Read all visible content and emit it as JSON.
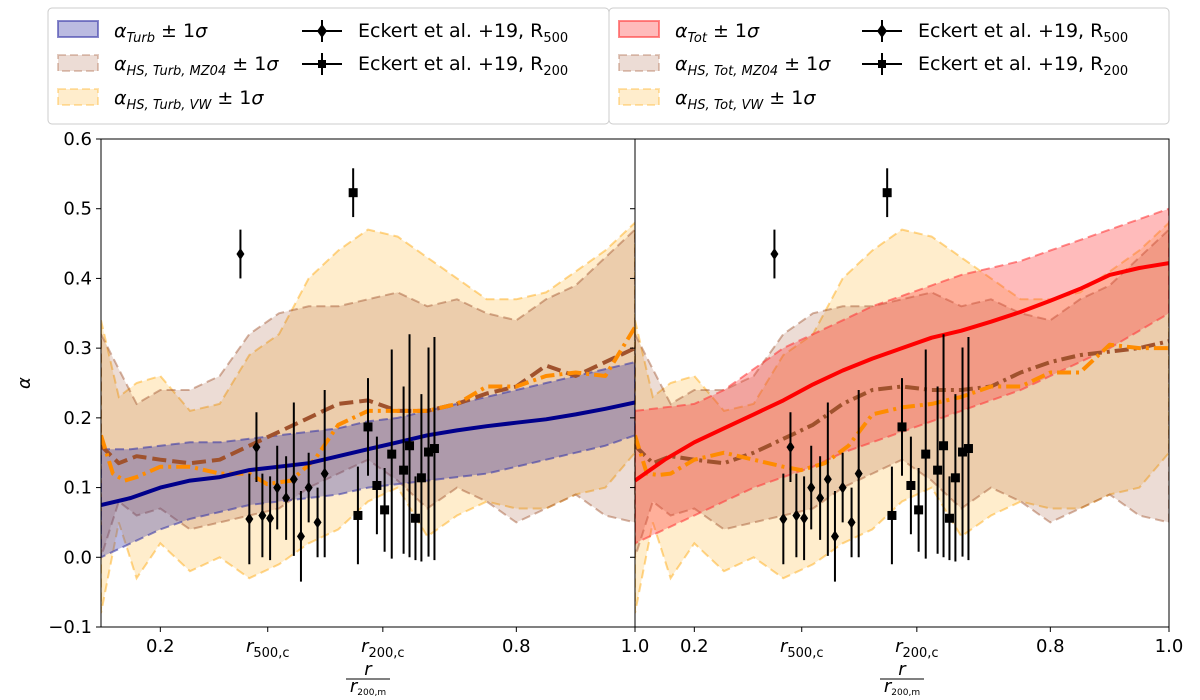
{
  "chart_data": [
    {
      "type": "line",
      "panel": "left",
      "ylabel": "α",
      "xlabel_num": "r",
      "xlabel_den": "r200,m",
      "xlim": [
        0.1,
        1.0
      ],
      "ylim": [
        -0.1,
        0.6
      ],
      "yticks": [
        -0.1,
        0.0,
        0.1,
        0.2,
        0.3,
        0.4,
        0.5,
        0.6
      ],
      "ytick_labels": [
        "−0.1",
        "0.0",
        "0.1",
        "0.2",
        "0.3",
        "0.4",
        "0.5",
        "0.6"
      ],
      "xticks": [
        0.2,
        0.381,
        0.575,
        0.8,
        1.0
      ],
      "xtick_labels": [
        "0.2",
        "r500,c",
        "r200,c",
        "0.8",
        "1.0"
      ],
      "legend": {
        "entries": [
          {
            "label": "αTurb ± 1σ",
            "kind": "band",
            "color": "#3b3ba8"
          },
          {
            "label": "αHS,Turb,MZ04 ± 1σ",
            "kind": "band",
            "color": "#a0522d"
          },
          {
            "label": "αHS,Turb,VW ± 1σ",
            "kind": "band",
            "color": "#ffa500"
          },
          {
            "label": "Eckert et al. +19, R500",
            "kind": "diamond",
            "color": "#000000"
          },
          {
            "label": "Eckert et al. +19, R200",
            "kind": "square",
            "color": "#000000"
          }
        ]
      },
      "series": [
        {
          "name": "αHS,Turb,VW band",
          "kind": "band",
          "color": "#ffa500",
          "opacity": 0.2,
          "x": [
            0.1,
            0.13,
            0.16,
            0.2,
            0.25,
            0.3,
            0.35,
            0.4,
            0.45,
            0.5,
            0.55,
            0.6,
            0.65,
            0.7,
            0.75,
            0.8,
            0.85,
            0.9,
            0.95,
            1.0
          ],
          "lower": [
            -0.08,
            0.05,
            -0.03,
            0.02,
            -0.02,
            0.0,
            -0.03,
            -0.01,
            0.02,
            0.04,
            0.08,
            0.1,
            0.03,
            0.06,
            0.08,
            0.07,
            0.07,
            0.09,
            0.1,
            0.15
          ],
          "upper": [
            0.34,
            0.23,
            0.25,
            0.26,
            0.21,
            0.22,
            0.29,
            0.32,
            0.4,
            0.44,
            0.47,
            0.46,
            0.43,
            0.4,
            0.37,
            0.37,
            0.38,
            0.41,
            0.44,
            0.48
          ]
        },
        {
          "name": "αHS,Turb,MZ04 band",
          "kind": "band",
          "color": "#a0522d",
          "opacity": 0.2,
          "x": [
            0.1,
            0.13,
            0.16,
            0.2,
            0.25,
            0.3,
            0.35,
            0.4,
            0.45,
            0.5,
            0.55,
            0.6,
            0.65,
            0.7,
            0.75,
            0.8,
            0.85,
            0.9,
            0.95,
            1.0
          ],
          "lower": [
            0.0,
            0.08,
            0.06,
            0.07,
            0.04,
            0.05,
            0.06,
            0.07,
            0.1,
            0.12,
            0.14,
            0.11,
            0.07,
            0.1,
            0.08,
            0.05,
            0.07,
            0.09,
            0.06,
            0.05
          ],
          "upper": [
            0.32,
            0.27,
            0.22,
            0.24,
            0.24,
            0.26,
            0.32,
            0.35,
            0.36,
            0.36,
            0.37,
            0.38,
            0.36,
            0.37,
            0.35,
            0.34,
            0.37,
            0.39,
            0.43,
            0.47
          ]
        },
        {
          "name": "αTurb band",
          "kind": "band",
          "color": "#3b3ba8",
          "opacity": 0.35,
          "x": [
            0.1,
            0.15,
            0.2,
            0.25,
            0.3,
            0.35,
            0.4,
            0.45,
            0.5,
            0.55,
            0.6,
            0.65,
            0.7,
            0.75,
            0.8,
            0.85,
            0.9,
            0.95,
            1.0
          ],
          "lower": [
            0.0,
            0.02,
            0.04,
            0.055,
            0.065,
            0.075,
            0.08,
            0.085,
            0.09,
            0.1,
            0.105,
            0.11,
            0.115,
            0.12,
            0.13,
            0.14,
            0.15,
            0.16,
            0.175
          ],
          "upper": [
            0.155,
            0.155,
            0.16,
            0.165,
            0.165,
            0.17,
            0.175,
            0.18,
            0.185,
            0.195,
            0.2,
            0.21,
            0.22,
            0.23,
            0.24,
            0.25,
            0.26,
            0.27,
            0.28
          ]
        },
        {
          "name": "αHS,Turb,MZ04",
          "kind": "line",
          "dash": "dashed",
          "color": "#a0522d",
          "x": [
            0.1,
            0.13,
            0.16,
            0.2,
            0.25,
            0.3,
            0.35,
            0.4,
            0.45,
            0.5,
            0.55,
            0.6,
            0.65,
            0.7,
            0.75,
            0.8,
            0.85,
            0.9,
            0.95,
            1.0
          ],
          "y": [
            0.16,
            0.135,
            0.145,
            0.14,
            0.135,
            0.14,
            0.16,
            0.18,
            0.2,
            0.22,
            0.225,
            0.21,
            0.21,
            0.22,
            0.235,
            0.245,
            0.275,
            0.26,
            0.28,
            0.3
          ]
        },
        {
          "name": "αHS,Turb,VW",
          "kind": "line",
          "dash": "dashdot",
          "color": "#ff8c00",
          "x": [
            0.1,
            0.12,
            0.14,
            0.16,
            0.2,
            0.25,
            0.3,
            0.35,
            0.38,
            0.42,
            0.46,
            0.5,
            0.55,
            0.6,
            0.65,
            0.7,
            0.75,
            0.8,
            0.85,
            0.9,
            0.95,
            1.0
          ],
          "y": [
            0.175,
            0.12,
            0.11,
            0.115,
            0.13,
            0.13,
            0.12,
            0.12,
            0.105,
            0.11,
            0.14,
            0.19,
            0.21,
            0.21,
            0.21,
            0.22,
            0.245,
            0.245,
            0.26,
            0.265,
            0.26,
            0.33
          ]
        },
        {
          "name": "αTurb",
          "kind": "line",
          "dash": "solid",
          "color": "#00008b",
          "x": [
            0.1,
            0.15,
            0.2,
            0.25,
            0.3,
            0.35,
            0.4,
            0.45,
            0.5,
            0.55,
            0.6,
            0.65,
            0.7,
            0.75,
            0.8,
            0.85,
            0.9,
            0.95,
            1.0
          ],
          "y": [
            0.075,
            0.085,
            0.1,
            0.11,
            0.115,
            0.125,
            0.13,
            0.135,
            0.145,
            0.155,
            0.165,
            0.175,
            0.182,
            0.188,
            0.193,
            0.198,
            0.205,
            0.213,
            0.222
          ]
        },
        {
          "name": "Eckert et al. +19, R500",
          "kind": "errorbar",
          "marker": "diamond",
          "color": "#000000",
          "x": [
            0.335,
            0.35,
            0.362,
            0.372,
            0.385,
            0.397,
            0.412,
            0.425,
            0.437,
            0.45,
            0.465,
            0.477
          ],
          "y": [
            0.435,
            0.055,
            0.158,
            0.06,
            0.056,
            0.1,
            0.085,
            0.112,
            0.03,
            0.1,
            0.05,
            0.12
          ],
          "err": [
            0.035,
            0.065,
            0.05,
            0.06,
            0.06,
            0.06,
            0.06,
            0.11,
            0.065,
            0.05,
            0.05,
            0.12
          ]
        },
        {
          "name": "Eckert et al. +19, R200",
          "kind": "errorbar",
          "marker": "square",
          "color": "#000000",
          "x": [
            0.525,
            0.533,
            0.55,
            0.565,
            0.578,
            0.59,
            0.61,
            0.62,
            0.63,
            0.64,
            0.652,
            0.662
          ],
          "y": [
            0.523,
            0.06,
            0.187,
            0.103,
            0.068,
            0.148,
            0.125,
            0.16,
            0.056,
            0.114,
            0.151,
            0.156
          ],
          "err": [
            0.035,
            0.07,
            0.07,
            0.07,
            0.06,
            0.15,
            0.12,
            0.16,
            0.06,
            0.12,
            0.15,
            0.16
          ]
        }
      ]
    },
    {
      "type": "line",
      "panel": "right",
      "xlabel_num": "r",
      "xlabel_den": "r200,m",
      "xlim": [
        0.1,
        1.0
      ],
      "ylim": [
        -0.1,
        0.6
      ],
      "xticks": [
        0.2,
        0.381,
        0.575,
        0.8,
        1.0
      ],
      "xtick_labels": [
        "0.2",
        "r500,c",
        "r200,c",
        "0.8",
        "1.0"
      ],
      "legend": {
        "entries": [
          {
            "label": "αTot ± 1σ",
            "kind": "band",
            "color": "#ff3c3c"
          },
          {
            "label": "αHS,Tot,MZ04 ± 1σ",
            "kind": "band",
            "color": "#a0522d"
          },
          {
            "label": "αHS,Tot,VW ± 1σ",
            "kind": "band",
            "color": "#ffa500"
          },
          {
            "label": "Eckert et al. +19, R500",
            "kind": "diamond",
            "color": "#000000"
          },
          {
            "label": "Eckert et al. +19, R200",
            "kind": "square",
            "color": "#000000"
          }
        ]
      },
      "series": [
        {
          "name": "αHS,Tot,VW band",
          "kind": "band",
          "color": "#ffa500",
          "opacity": 0.2,
          "x": [
            0.1,
            0.13,
            0.16,
            0.2,
            0.25,
            0.3,
            0.35,
            0.4,
            0.45,
            0.5,
            0.55,
            0.6,
            0.65,
            0.7,
            0.75,
            0.8,
            0.85,
            0.9,
            0.95,
            1.0
          ],
          "lower": [
            -0.08,
            0.05,
            -0.03,
            0.02,
            -0.02,
            0.0,
            -0.03,
            -0.01,
            0.02,
            0.04,
            0.08,
            0.1,
            0.03,
            0.06,
            0.08,
            0.07,
            0.07,
            0.09,
            0.1,
            0.15
          ],
          "upper": [
            0.34,
            0.23,
            0.25,
            0.26,
            0.21,
            0.22,
            0.29,
            0.32,
            0.4,
            0.44,
            0.47,
            0.46,
            0.43,
            0.4,
            0.37,
            0.37,
            0.38,
            0.41,
            0.44,
            0.48
          ]
        },
        {
          "name": "αHS,Tot,MZ04 band",
          "kind": "band",
          "color": "#a0522d",
          "opacity": 0.2,
          "x": [
            0.1,
            0.13,
            0.16,
            0.2,
            0.25,
            0.3,
            0.35,
            0.4,
            0.45,
            0.5,
            0.55,
            0.6,
            0.65,
            0.7,
            0.75,
            0.8,
            0.85,
            0.9,
            0.95,
            1.0
          ],
          "lower": [
            0.0,
            0.08,
            0.06,
            0.07,
            0.04,
            0.05,
            0.06,
            0.07,
            0.1,
            0.12,
            0.14,
            0.11,
            0.07,
            0.1,
            0.08,
            0.05,
            0.07,
            0.09,
            0.06,
            0.05
          ],
          "upper": [
            0.32,
            0.27,
            0.22,
            0.24,
            0.24,
            0.26,
            0.32,
            0.35,
            0.36,
            0.36,
            0.37,
            0.38,
            0.36,
            0.37,
            0.35,
            0.34,
            0.37,
            0.39,
            0.43,
            0.47
          ]
        },
        {
          "name": "αTot band",
          "kind": "band",
          "color": "#ff3c3c",
          "opacity": 0.35,
          "x": [
            0.1,
            0.15,
            0.2,
            0.25,
            0.3,
            0.35,
            0.4,
            0.45,
            0.5,
            0.55,
            0.6,
            0.65,
            0.7,
            0.75,
            0.8,
            0.85,
            0.9,
            0.95,
            1.0
          ],
          "lower": [
            0.02,
            0.04,
            0.06,
            0.08,
            0.1,
            0.115,
            0.13,
            0.15,
            0.165,
            0.18,
            0.195,
            0.21,
            0.225,
            0.24,
            0.26,
            0.28,
            0.3,
            0.325,
            0.35
          ],
          "upper": [
            0.21,
            0.215,
            0.22,
            0.24,
            0.27,
            0.3,
            0.32,
            0.34,
            0.36,
            0.375,
            0.39,
            0.405,
            0.415,
            0.425,
            0.44,
            0.455,
            0.47,
            0.485,
            0.5
          ]
        },
        {
          "name": "αHS,Tot,MZ04",
          "kind": "line",
          "dash": "dashdot",
          "color": "#a0522d",
          "x": [
            0.1,
            0.13,
            0.16,
            0.2,
            0.25,
            0.3,
            0.35,
            0.4,
            0.45,
            0.5,
            0.55,
            0.6,
            0.65,
            0.7,
            0.75,
            0.8,
            0.85,
            0.9,
            0.95,
            1.0
          ],
          "y": [
            0.16,
            0.135,
            0.145,
            0.14,
            0.135,
            0.15,
            0.17,
            0.19,
            0.22,
            0.24,
            0.245,
            0.24,
            0.24,
            0.245,
            0.265,
            0.28,
            0.29,
            0.295,
            0.3,
            0.31
          ]
        },
        {
          "name": "αHS,Tot,VW",
          "kind": "line",
          "dash": "dashdot",
          "color": "#ff8c00",
          "x": [
            0.1,
            0.12,
            0.14,
            0.16,
            0.2,
            0.25,
            0.3,
            0.35,
            0.38,
            0.42,
            0.46,
            0.5,
            0.55,
            0.6,
            0.65,
            0.7,
            0.75,
            0.8,
            0.85,
            0.9,
            0.95,
            1.0
          ],
          "y": [
            0.175,
            0.12,
            0.118,
            0.12,
            0.14,
            0.15,
            0.14,
            0.13,
            0.125,
            0.135,
            0.16,
            0.205,
            0.215,
            0.22,
            0.23,
            0.245,
            0.245,
            0.265,
            0.265,
            0.305,
            0.3,
            0.3
          ]
        },
        {
          "name": "αTot",
          "kind": "line",
          "dash": "solid",
          "color": "#ff0000",
          "x": [
            0.1,
            0.15,
            0.2,
            0.25,
            0.3,
            0.35,
            0.4,
            0.45,
            0.5,
            0.55,
            0.6,
            0.65,
            0.7,
            0.75,
            0.8,
            0.85,
            0.9,
            0.95,
            1.0
          ],
          "y": [
            0.11,
            0.14,
            0.165,
            0.185,
            0.205,
            0.225,
            0.248,
            0.268,
            0.285,
            0.3,
            0.315,
            0.325,
            0.338,
            0.352,
            0.368,
            0.385,
            0.405,
            0.415,
            0.422
          ]
        },
        {
          "name": "Eckert et al. +19, R500",
          "kind": "errorbar",
          "marker": "diamond",
          "color": "#000000",
          "x": [
            0.335,
            0.35,
            0.362,
            0.372,
            0.385,
            0.397,
            0.412,
            0.425,
            0.437,
            0.45,
            0.465,
            0.477
          ],
          "y": [
            0.435,
            0.055,
            0.158,
            0.06,
            0.056,
            0.1,
            0.085,
            0.112,
            0.03,
            0.1,
            0.05,
            0.12
          ],
          "err": [
            0.035,
            0.065,
            0.05,
            0.06,
            0.06,
            0.06,
            0.06,
            0.11,
            0.065,
            0.05,
            0.05,
            0.12
          ]
        },
        {
          "name": "Eckert et al. +19, R200",
          "kind": "errorbar",
          "marker": "square",
          "color": "#000000",
          "x": [
            0.525,
            0.533,
            0.55,
            0.565,
            0.578,
            0.59,
            0.61,
            0.62,
            0.63,
            0.64,
            0.652,
            0.662
          ],
          "y": [
            0.523,
            0.06,
            0.187,
            0.103,
            0.068,
            0.148,
            0.125,
            0.16,
            0.056,
            0.114,
            0.151,
            0.156
          ],
          "err": [
            0.035,
            0.07,
            0.07,
            0.07,
            0.06,
            0.15,
            0.12,
            0.16,
            0.06,
            0.12,
            0.15,
            0.16
          ]
        }
      ]
    }
  ]
}
